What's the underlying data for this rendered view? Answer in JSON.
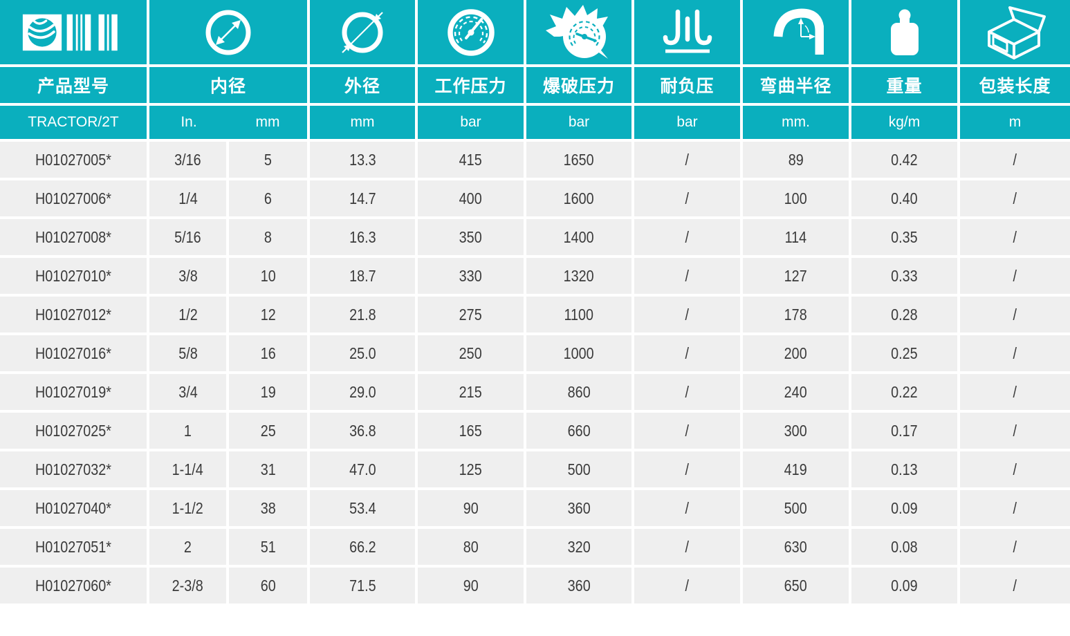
{
  "theme": {
    "accent": "#0aafbe",
    "row_background": "#efefef",
    "data_text": "#3a3a3a",
    "header_text": "#ffffff"
  },
  "table": {
    "columns": [
      {
        "label": "产品型号",
        "unit": "TRACTOR/2T",
        "icon": "product-code-icon"
      },
      {
        "label": "内径",
        "unit_in": "In.",
        "unit_mm": "mm",
        "icon": "inner-diameter-icon"
      },
      {
        "label": "外径",
        "unit": "mm",
        "icon": "outer-diameter-icon"
      },
      {
        "label": "工作压力",
        "unit": "bar",
        "icon": "working-pressure-icon"
      },
      {
        "label": "爆破压力",
        "unit": "bar",
        "icon": "burst-pressure-icon"
      },
      {
        "label": "耐负压",
        "unit": "bar",
        "icon": "vacuum-resistance-icon"
      },
      {
        "label": "弯曲半径",
        "unit": "mm.",
        "icon": "bend-radius-icon"
      },
      {
        "label": "重量",
        "unit": "kg/m",
        "icon": "weight-icon"
      },
      {
        "label": "包装长度",
        "unit": "m",
        "icon": "package-length-icon"
      }
    ],
    "rows": [
      {
        "cells": [
          "H01027005*",
          "3/16",
          "5",
          "13.3",
          "415",
          "1650",
          "/",
          "89",
          "0.42",
          "/"
        ]
      },
      {
        "cells": [
          "H01027006*",
          "1/4",
          "6",
          "14.7",
          "400",
          "1600",
          "/",
          "100",
          "0.40",
          "/"
        ]
      },
      {
        "cells": [
          "H01027008*",
          "5/16",
          "8",
          "16.3",
          "350",
          "1400",
          "/",
          "114",
          "0.35",
          "/"
        ]
      },
      {
        "cells": [
          "H01027010*",
          "3/8",
          "10",
          "18.7",
          "330",
          "1320",
          "/",
          "127",
          "0.33",
          "/"
        ]
      },
      {
        "cells": [
          "H01027012*",
          "1/2",
          "12",
          "21.8",
          "275",
          "1100",
          "/",
          "178",
          "0.28",
          "/"
        ]
      },
      {
        "cells": [
          "H01027016*",
          "5/8",
          "16",
          "25.0",
          "250",
          "1000",
          "/",
          "200",
          "0.25",
          "/"
        ]
      },
      {
        "cells": [
          "H01027019*",
          "3/4",
          "19",
          "29.0",
          "215",
          "860",
          "/",
          "240",
          "0.22",
          "/"
        ]
      },
      {
        "cells": [
          "H01027025*",
          "1",
          "25",
          "36.8",
          "165",
          "660",
          "/",
          "300",
          "0.17",
          "/"
        ]
      },
      {
        "cells": [
          "H01027032*",
          "1-1/4",
          "31",
          "47.0",
          "125",
          "500",
          "/",
          "419",
          "0.13",
          "/"
        ]
      },
      {
        "cells": [
          "H01027040*",
          "1-1/2",
          "38",
          "53.4",
          "90",
          "360",
          "/",
          "500",
          "0.09",
          "/"
        ]
      },
      {
        "cells": [
          "H01027051*",
          "2",
          "51",
          "66.2",
          "80",
          "320",
          "/",
          "630",
          "0.08",
          "/"
        ]
      },
      {
        "cells": [
          "H01027060*",
          "2-3/8",
          "60",
          "71.5",
          "90",
          "360",
          "/",
          "650",
          "0.09",
          "/"
        ]
      }
    ]
  }
}
